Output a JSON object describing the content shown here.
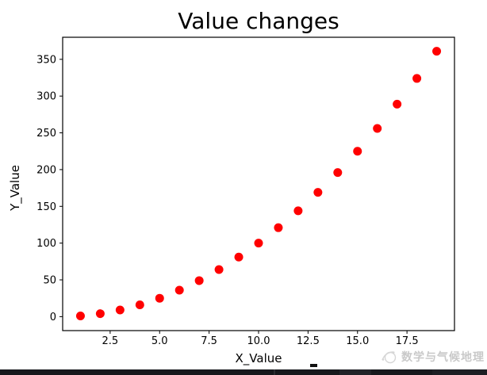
{
  "chart_data": {
    "type": "scatter",
    "title": "Value changes",
    "xlabel": "X_Value",
    "ylabel": "Y_Value",
    "x": [
      1,
      2,
      3,
      4,
      5,
      6,
      7,
      8,
      9,
      10,
      11,
      12,
      13,
      14,
      15,
      16,
      17,
      18,
      19
    ],
    "y": [
      1,
      4,
      9,
      16,
      25,
      36,
      49,
      64,
      81,
      100,
      121,
      144,
      169,
      196,
      225,
      256,
      289,
      324,
      361
    ],
    "xlim": [
      0.1,
      19.9
    ],
    "ylim": [
      -19,
      380
    ],
    "xticks": [
      2.5,
      5.0,
      7.5,
      10.0,
      12.5,
      15.0,
      17.5
    ],
    "xtick_labels": [
      "2.5",
      "5.0",
      "7.5",
      "10.0",
      "12.5",
      "15.0",
      "17.5"
    ],
    "yticks": [
      0,
      50,
      100,
      150,
      200,
      250,
      300,
      350
    ],
    "ytick_labels": [
      "0",
      "50",
      "100",
      "150",
      "200",
      "250",
      "300",
      "350"
    ],
    "marker_color": "#ff0000",
    "marker_radius": 5.5,
    "grid": false,
    "legend": "none",
    "frame_color": "#000000",
    "background": "#ffffff"
  },
  "watermark": {
    "text": "数学与气候地理",
    "logo": "globe-orbit-icon",
    "color": "#c9c9c9"
  }
}
